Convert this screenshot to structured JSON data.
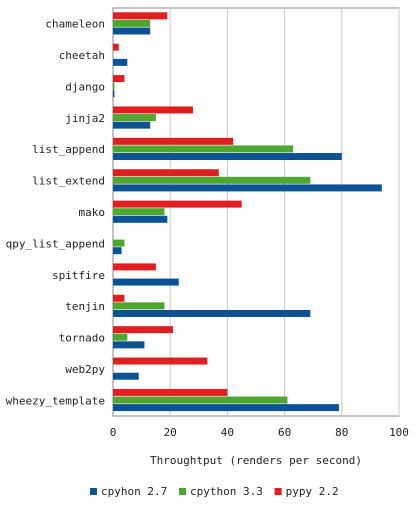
{
  "chart_data": {
    "type": "bar",
    "orientation": "horizontal",
    "title": "",
    "xlabel": "Throughtput (renders per second)",
    "ylabel": "",
    "xlim": [
      0,
      100
    ],
    "xticks": [
      0,
      20,
      40,
      60,
      80,
      100
    ],
    "grid": true,
    "legend_position": "bottom",
    "categories": [
      "chameleon",
      "cheetah",
      "django",
      "jinja2",
      "list_append",
      "list_extend",
      "mako",
      "qpy_list_append",
      "spitfire",
      "tenjin",
      "tornado",
      "web2py",
      "wheezy_template"
    ],
    "series": [
      {
        "name": "cpyhon 2.7",
        "color": "#0b5394",
        "values": [
          13,
          5,
          0.5,
          13,
          80,
          94,
          19,
          3,
          23,
          69,
          11,
          9,
          79
        ]
      },
      {
        "name": "cpython 3.3",
        "color": "#4ea72e",
        "values": [
          13,
          0,
          0.5,
          15,
          63,
          69,
          18,
          4,
          0,
          18,
          5,
          0,
          61
        ]
      },
      {
        "name": "pypy 2.2",
        "color": "#e02020",
        "values": [
          19,
          2,
          4,
          28,
          42,
          37,
          45,
          0,
          15,
          4,
          21,
          33,
          40
        ]
      }
    ]
  }
}
